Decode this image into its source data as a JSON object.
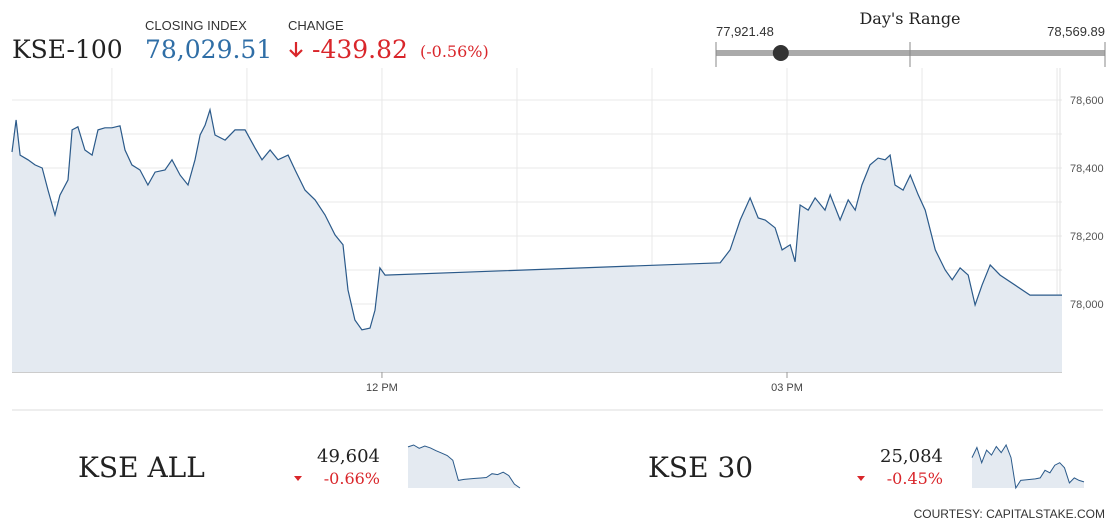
{
  "header": {
    "name": "KSE-100",
    "closing_label": "CLOSING INDEX",
    "closing_index": {
      "value": 78029.51,
      "label": "78,029.51"
    },
    "change_label": "CHANGE",
    "change": "-439.82",
    "change_pct": "(-0.56%)"
  },
  "range": {
    "title": "Day's Range",
    "low": {
      "value": 77921.48,
      "label": "77,921.48"
    },
    "high": {
      "value": 78569.89,
      "label": "78,569.89"
    }
  },
  "chart_data": {
    "type": "line",
    "color": "#2b5a8a",
    "fill": "#e4eaf1",
    "grid": true,
    "x": [
      555.6,
      557.4,
      559.2,
      562.7,
      565.8,
      569.0,
      571.6,
      574.7,
      576.9,
      580.5,
      582.3,
      584.9,
      588.0,
      591.2,
      593.8,
      596.9,
      600.0,
      603.6,
      605.8,
      608.9,
      612.5,
      616.0,
      619.2,
      623.6,
      626.7,
      630.3,
      633.8,
      636.9,
      639.2,
      641.4,
      643.6,
      645.8,
      650.3,
      654.7,
      659.2,
      663.6,
      666.7,
      670.3,
      673.8,
      678.3,
      681.4,
      685.8,
      690.3,
      694.7,
      699.2,
      702.7,
      704.9,
      708.0,
      711.1,
      714.7,
      716.9,
      719.1,
      721.4,
      870.3,
      874.7,
      879.2,
      883.6,
      887.2,
      890.3,
      894.7,
      897.8,
      901.4,
      903.6,
      905.8,
      909.4,
      912.5,
      916.9,
      919.2,
      923.6,
      927.2,
      930.3,
      933.3,
      936.9,
      940.5,
      943.6,
      945.8,
      948.0,
      951.6,
      954.8,
      958.3,
      961.4,
      965.9,
      970.3,
      973.4,
      976.9,
      980.5,
      983.6,
      986.7,
      990.3,
      994.7,
      1008.0,
      1022.2
    ],
    "values": [
      78447,
      78541,
      78438,
      78424,
      78409,
      78400,
      78335,
      78262,
      78320,
      78365,
      78512,
      78521,
      78453,
      78438,
      78512,
      78518,
      78518,
      78524,
      78453,
      78409,
      78394,
      78350,
      78388,
      78394,
      78424,
      78379,
      78350,
      78424,
      78497,
      78526,
      78571,
      78497,
      78482,
      78512,
      78512,
      78459,
      78424,
      78453,
      78424,
      78438,
      78394,
      78335,
      78306,
      78262,
      78203,
      78174,
      78041,
      77953,
      77924,
      77929,
      77982,
      78106,
      78085,
      78121,
      78159,
      78247,
      78312,
      78253,
      78247,
      78224,
      78159,
      78174,
      78124,
      78291,
      78276,
      78312,
      78276,
      78321,
      78247,
      78306,
      78276,
      78350,
      78409,
      78429,
      78424,
      78438,
      78350,
      78335,
      78379,
      78321,
      78276,
      78159,
      78100,
      78071,
      78106,
      78085,
      77997,
      78056,
      78115,
      78085,
      78026,
      78026
    ],
    "xlim": [
      555.6,
      1022.2
    ],
    "ylim": [
      77800,
      78694
    ],
    "xticks": [
      {
        "value": 600,
        "label": null
      },
      {
        "value": 660,
        "label": null
      },
      {
        "value": 720,
        "label": "12 PM"
      },
      {
        "value": 780,
        "label": null
      },
      {
        "value": 840,
        "label": null
      },
      {
        "value": 900,
        "label": "03 PM"
      },
      {
        "value": 960,
        "label": null
      },
      {
        "value": 1020,
        "label": null
      }
    ],
    "yticks": [
      {
        "value": 77900,
        "label": null
      },
      {
        "value": 78000,
        "label": "78,000"
      },
      {
        "value": 78100,
        "label": null
      },
      {
        "value": 78200,
        "label": "78,200"
      },
      {
        "value": 78300,
        "label": null
      },
      {
        "value": 78400,
        "label": "78,400"
      },
      {
        "value": 78500,
        "label": null
      },
      {
        "value": 78600,
        "label": "78,600"
      }
    ]
  },
  "tickers": [
    {
      "name": "KSE ALL",
      "value": "49,604",
      "change": "-0.66%",
      "spark": [
        88,
        92,
        85,
        90,
        86,
        80,
        75,
        70,
        60,
        18,
        20,
        21,
        22,
        23,
        24,
        32,
        30,
        35,
        28,
        10,
        2
      ]
    },
    {
      "name": "KSE 30",
      "value": "25,084",
      "change": "-0.45%",
      "spark": [
        70,
        90,
        60,
        85,
        75,
        92,
        80,
        95,
        70,
        10,
        25,
        26,
        27,
        28,
        30,
        45,
        40,
        55,
        60,
        50,
        20,
        30,
        25,
        22
      ]
    }
  ],
  "courtesy": "COURTESY: CAPITALSTAKE.COM"
}
